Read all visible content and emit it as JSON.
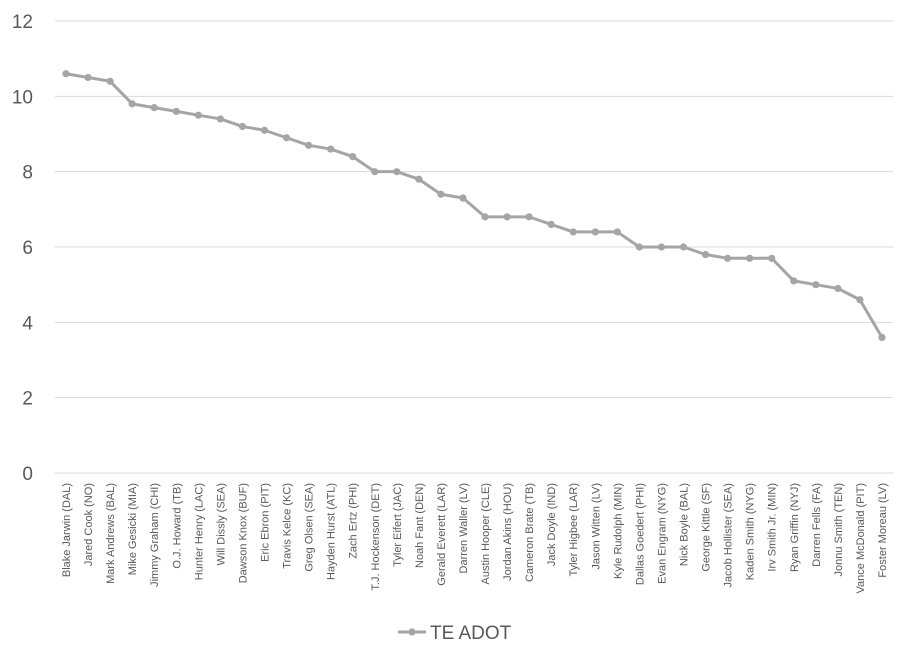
{
  "chart_data": {
    "type": "line",
    "title": "",
    "xlabel": "",
    "ylabel": "",
    "ylim": [
      0,
      12
    ],
    "yticks": [
      0,
      2,
      4,
      6,
      8,
      10,
      12
    ],
    "grid": true,
    "legend": "bottom",
    "categories": [
      "Blake Jarwin (DAL)",
      "Jared Cook (NO)",
      "Mark Andrews (BAL)",
      "Mike Gesicki (MIA)",
      "Jimmy Graham (CHI)",
      "O.J. Howard (TB)",
      "Hunter Henry (LAC)",
      "Will Dissly (SEA)",
      "Dawson Knox (BUF)",
      "Eric Ebron (PIT)",
      "Travis Kelce (KC)",
      "Greg Olsen (SEA)",
      "Hayden Hurst (ATL)",
      "Zach Ertz (PHI)",
      "T.J. Hockenson (DET)",
      "Tyler Eifert (JAC)",
      "Noah Fant (DEN)",
      "Gerald Everett (LAR)",
      "Darren Waller (LV)",
      "Austin Hooper (CLE)",
      "Jordan Akins (HOU)",
      "Cameron Brate (TB)",
      "Jack Doyle (IND)",
      "Tyler Higbee (LAR)",
      "Jason Witten (LV)",
      "Kyle Rudolph (MIN)",
      "Dallas Goedert (PHI)",
      "Evan Engram (NYG)",
      "Nick Boyle (BAL)",
      "George Kittle (SF)",
      "Jacob Hollister (SEA)",
      "Kaden Smith (NYG)",
      "Irv Smith Jr. (MIN)",
      "Ryan Griffin (NYJ)",
      "Darren Fells (FA)",
      "Jonnu Smith (TEN)",
      "Vance McDonald (PIT)",
      "Foster Moreau (LV)"
    ],
    "series": [
      {
        "name": "TE ADOT",
        "color": "#a5a5a5",
        "values": [
          10.6,
          10.5,
          10.4,
          9.8,
          9.7,
          9.6,
          9.5,
          9.4,
          9.2,
          9.1,
          8.9,
          8.7,
          8.6,
          8.4,
          8.0,
          8.0,
          7.8,
          7.4,
          7.3,
          6.8,
          6.8,
          6.8,
          6.6,
          6.4,
          6.4,
          6.4,
          6.0,
          6.0,
          6.0,
          5.8,
          5.7,
          5.7,
          5.7,
          5.1,
          5.0,
          4.9,
          4.6,
          3.6
        ]
      }
    ],
    "colors": {
      "grid": "#d9d9d9",
      "text": "#595959"
    }
  }
}
